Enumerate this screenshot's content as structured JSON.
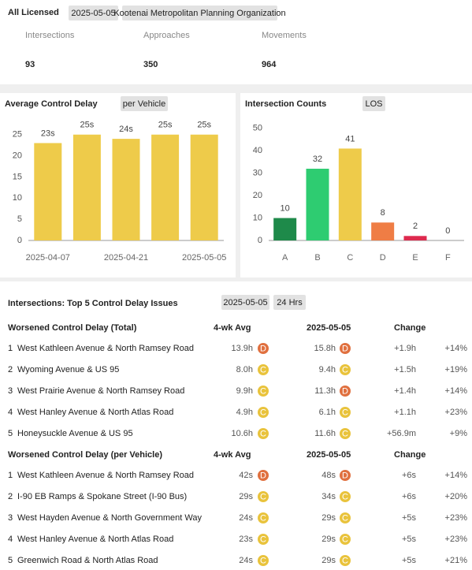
{
  "header": {
    "title": "All Licensed",
    "tags": [
      "2025-05-05",
      "Kootenai Metropolitan Planning Organization"
    ]
  },
  "stats": [
    {
      "label": "Intersections",
      "value": 93
    },
    {
      "label": "Approaches",
      "value": 350
    },
    {
      "label": "Movements",
      "value": 964
    }
  ],
  "chart_data": [
    {
      "type": "bar",
      "title": "Average Control Delay",
      "tag": "per Vehicle",
      "categories": [
        "2025-04-07",
        null,
        "2025-04-21",
        null,
        "2025-05-05"
      ],
      "values": [
        23,
        25,
        24,
        25,
        25
      ],
      "value_labels": [
        "23s",
        "25s",
        "24s",
        "25s",
        "25s"
      ],
      "color": "#eecb4a",
      "ylim": [
        0,
        27
      ],
      "yticks": [
        0,
        5,
        10,
        15,
        20,
        25
      ]
    },
    {
      "type": "bar",
      "title": "Intersection Counts",
      "tag": "LOS",
      "categories": [
        "A",
        "B",
        "C",
        "D",
        "E",
        "F"
      ],
      "values": [
        10,
        32,
        41,
        8,
        2,
        0
      ],
      "colors": [
        "#1e8a4a",
        "#2ecc71",
        "#eecb4a",
        "#ef7d45",
        "#de2a4e",
        "#999999"
      ],
      "ylim": [
        0,
        51
      ],
      "yticks": [
        0,
        10,
        20,
        30,
        40,
        50
      ]
    }
  ],
  "table": {
    "title": "Intersections: Top 5 Control Delay Issues",
    "tags": [
      "2025-05-05",
      "24 Hrs"
    ],
    "los_colors": {
      "C": "#e9c33c",
      "D": "#e0703f"
    },
    "sections": [
      {
        "headers": [
          "Worsened Control Delay (Total)",
          "4-wk Avg",
          "2025-05-05",
          "Change"
        ],
        "rows": [
          {
            "rank": 1,
            "name": "West Kathleen Avenue & North Ramsey Road",
            "avg": "13.9h",
            "avg_los": "D",
            "current": "15.8h",
            "current_los": "D",
            "change": "+1.9h",
            "pct": "+14%"
          },
          {
            "rank": 2,
            "name": "Wyoming Avenue & US 95",
            "avg": "8.0h",
            "avg_los": "C",
            "current": "9.4h",
            "current_los": "C",
            "change": "+1.5h",
            "pct": "+19%"
          },
          {
            "rank": 3,
            "name": "West Prairie Avenue & North Ramsey Road",
            "avg": "9.9h",
            "avg_los": "C",
            "current": "11.3h",
            "current_los": "D",
            "change": "+1.4h",
            "pct": "+14%"
          },
          {
            "rank": 4,
            "name": "West Hanley Avenue & North Atlas Road",
            "avg": "4.9h",
            "avg_los": "C",
            "current": "6.1h",
            "current_los": "C",
            "change": "+1.1h",
            "pct": "+23%"
          },
          {
            "rank": 5,
            "name": "Honeysuckle Avenue & US 95",
            "avg": "10.6h",
            "avg_los": "C",
            "current": "11.6h",
            "current_los": "C",
            "change": "+56.9m",
            "pct": "+9%"
          }
        ]
      },
      {
        "headers": [
          "Worsened Control Delay (per Vehicle)",
          "4-wk Avg",
          "2025-05-05",
          "Change"
        ],
        "rows": [
          {
            "rank": 1,
            "name": "West Kathleen Avenue & North Ramsey Road",
            "avg": "42s",
            "avg_los": "D",
            "current": "48s",
            "current_los": "D",
            "change": "+6s",
            "pct": "+14%"
          },
          {
            "rank": 2,
            "name": "I-90 EB Ramps & Spokane Street (I-90 Bus)",
            "avg": "29s",
            "avg_los": "C",
            "current": "34s",
            "current_los": "C",
            "change": "+6s",
            "pct": "+20%"
          },
          {
            "rank": 3,
            "name": "West Hayden Avenue & North Government Way",
            "avg": "24s",
            "avg_los": "C",
            "current": "29s",
            "current_los": "C",
            "change": "+5s",
            "pct": "+23%"
          },
          {
            "rank": 4,
            "name": "West Hanley Avenue & North Atlas Road",
            "avg": "23s",
            "avg_los": "C",
            "current": "29s",
            "current_los": "C",
            "change": "+5s",
            "pct": "+23%"
          },
          {
            "rank": 5,
            "name": "Greenwich Road & North Atlas Road",
            "avg": "24s",
            "avg_los": "C",
            "current": "29s",
            "current_los": "C",
            "change": "+5s",
            "pct": "+21%"
          }
        ]
      }
    ]
  }
}
